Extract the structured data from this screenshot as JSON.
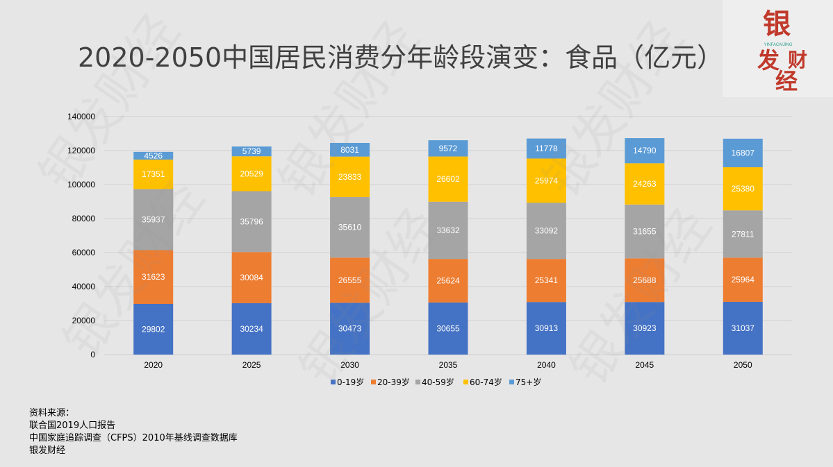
{
  "title": "2020-2050中国居民消费分年龄段演变：食品（亿元）",
  "logo": {
    "text": "银发财经",
    "subtext": "YINFACAIJING",
    "color": "#c0392b"
  },
  "watermark_text": "银发财经",
  "chart_data": {
    "type": "bar",
    "stacked": true,
    "categories": [
      "2020",
      "2025",
      "2030",
      "2035",
      "2040",
      "2045",
      "2050"
    ],
    "series": [
      {
        "name": "0-19岁",
        "color": "#4472c4",
        "values": [
          29802,
          30234,
          30473,
          30655,
          30913,
          30923,
          31037
        ]
      },
      {
        "name": "20-39岁",
        "color": "#ed7d31",
        "values": [
          31623,
          30084,
          26555,
          25624,
          25341,
          25688,
          25964
        ]
      },
      {
        "name": "40-59岁",
        "color": "#a5a5a5",
        "values": [
          35937,
          35796,
          35610,
          33632,
          33092,
          31655,
          27811
        ]
      },
      {
        "name": "60-74岁",
        "color": "#ffc000",
        "values": [
          17351,
          20529,
          23833,
          26602,
          25974,
          24263,
          25380
        ]
      },
      {
        "name": "75+岁",
        "color": "#5b9bd5",
        "values": [
          4526,
          5739,
          8031,
          9572,
          11778,
          14790,
          16807
        ]
      }
    ],
    "ylim": [
      0,
      140000
    ],
    "yticks": [
      0,
      20000,
      40000,
      60000,
      80000,
      100000,
      120000,
      140000
    ],
    "grid": true,
    "legend": "bottom"
  },
  "source": {
    "heading": "资料来源：",
    "lines": [
      "联合国2019人口报告",
      "中国家庭追踪调查（CFPS）2010年基线调查数据库",
      "银发财经"
    ]
  }
}
